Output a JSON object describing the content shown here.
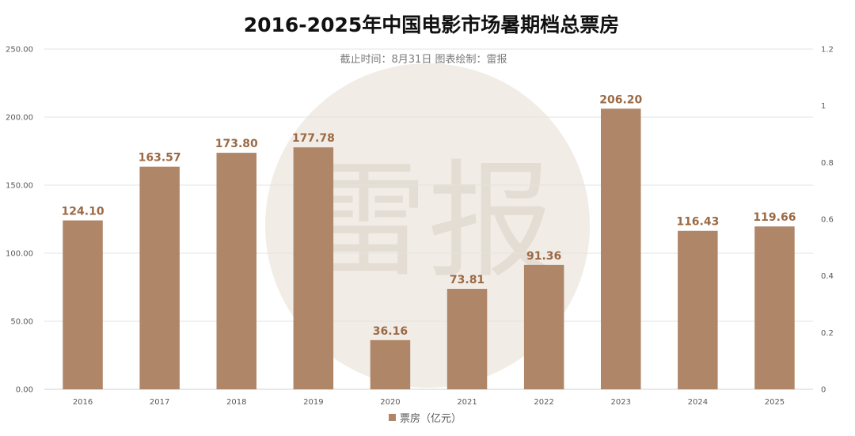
{
  "chart_data": {
    "type": "bar",
    "title": "2016-2025年中国电影市场暑期档总票房",
    "subtitle": "截止时间：8月31日  图表绘制：雷报",
    "watermark": "雷报",
    "categories": [
      "2016",
      "2017",
      "2018",
      "2019",
      "2020",
      "2021",
      "2022",
      "2023",
      "2024",
      "2025"
    ],
    "series": [
      {
        "name": "票房（亿元）",
        "values": [
          124.1,
          163.57,
          173.8,
          177.78,
          36.16,
          73.81,
          91.36,
          206.2,
          116.43,
          119.66
        ],
        "value_labels": [
          "124.10",
          "163.57",
          "173.80",
          "177.78",
          "36.16",
          "73.81",
          "91.36",
          "206.20",
          "116.43",
          "119.66"
        ],
        "color": "#b08668"
      }
    ],
    "y_axis_left": {
      "min": 0,
      "max": 250,
      "ticks": [
        0,
        50,
        100,
        150,
        200,
        250
      ],
      "tick_labels": [
        "0.00",
        "50.00",
        "100.00",
        "150.00",
        "200.00",
        "250.00"
      ]
    },
    "y_axis_right": {
      "min": 0,
      "max": 1.2,
      "ticks": [
        0,
        0.2,
        0.4,
        0.6,
        0.8,
        1,
        1.2
      ],
      "tick_labels": [
        "0",
        "0.2",
        "0.4",
        "0.6",
        "0.8",
        "1",
        "1.2"
      ]
    },
    "grid": true,
    "legend_position": "bottom",
    "colors": {
      "bar": "#b08668",
      "label": "#9b6a45",
      "grid": "#e3e3e3",
      "watermark": "#f1ece6"
    }
  }
}
